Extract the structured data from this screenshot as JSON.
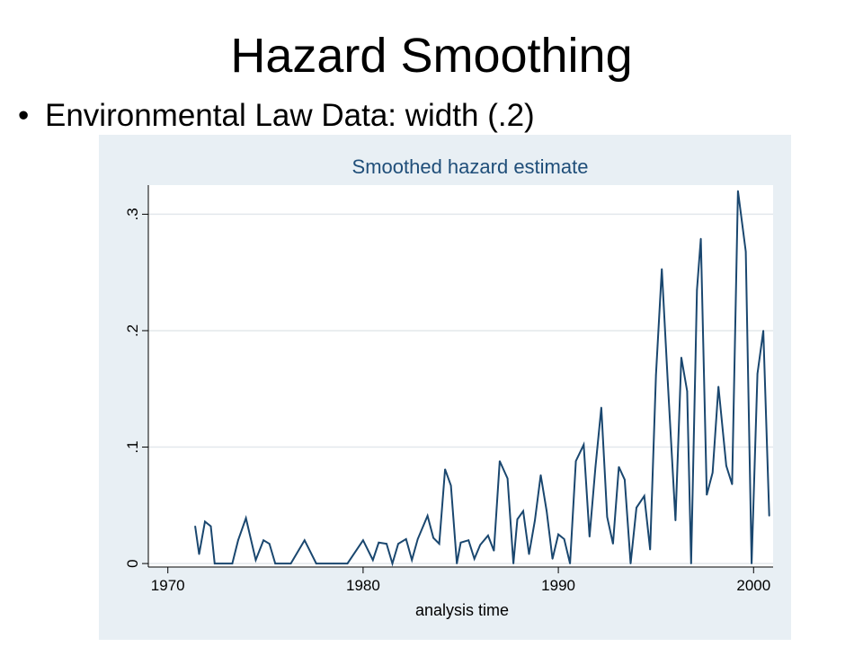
{
  "slide": {
    "title": "Hazard Smoothing",
    "bullet": "Environmental Law Data:  width (.2)"
  },
  "colors": {
    "panel_bg": "#e8eff4",
    "plot_bg": "#ffffff",
    "line": "#1a476f",
    "grid": "#e3e8ec",
    "title": "#1f4e79"
  },
  "chart_data": {
    "type": "line",
    "title": "Smoothed hazard estimate",
    "xlabel": "analysis time",
    "ylabel": "",
    "xlim": [
      1969,
      2001
    ],
    "ylim": [
      -0.003,
      0.325
    ],
    "xticks": [
      1970,
      1980,
      1990,
      2000
    ],
    "xtick_labels": [
      "1970",
      "1980",
      "1990",
      "2000"
    ],
    "yticks": [
      0,
      0.1,
      0.2,
      0.3
    ],
    "ytick_labels": [
      "0",
      ".1",
      ".2",
      ".3"
    ],
    "grid": true,
    "series": [
      {
        "x": [
          1971.4,
          1971.6,
          1971.9,
          1972.2,
          1972.4,
          1972.8,
          1973.3,
          1973.6,
          1974.0,
          1974.5,
          1974.9,
          1975.2,
          1975.5,
          1976.3,
          1977.0,
          1977.6,
          1978.5,
          1979.2,
          1980.0,
          1980.5,
          1980.8,
          1981.2,
          1981.5,
          1981.8,
          1982.2,
          1982.5,
          1982.8,
          1983.3,
          1983.6,
          1983.9,
          1984.2,
          1984.5,
          1984.8,
          1985.0,
          1985.4,
          1985.7,
          1986.0,
          1986.4,
          1986.7,
          1987.0,
          1987.4,
          1987.7,
          1987.9,
          1988.2,
          1988.5,
          1988.8,
          1989.1,
          1989.4,
          1989.7,
          1990.0,
          1990.3,
          1990.6,
          1990.9,
          1991.3,
          1991.6,
          1991.9,
          1992.2,
          1992.5,
          1992.8,
          1993.1,
          1993.4,
          1993.7,
          1994.0,
          1994.4,
          1994.7,
          1995.0,
          1995.3,
          1995.6,
          1996.0,
          1996.3,
          1996.6,
          1996.8,
          1997.1,
          1997.3,
          1997.6,
          1997.9,
          1998.2,
          1998.6,
          1998.9,
          1999.2,
          1999.6,
          1999.9,
          2000.2,
          2000.5,
          2000.8
        ],
        "y": [
          0.032,
          0.008,
          0.036,
          0.032,
          0.0,
          0.0,
          0.0,
          0.02,
          0.039,
          0.003,
          0.02,
          0.017,
          0.0,
          0.0,
          0.02,
          0.0,
          0.0,
          0.0,
          0.02,
          0.003,
          0.018,
          0.017,
          0.0,
          0.017,
          0.021,
          0.003,
          0.021,
          0.041,
          0.022,
          0.017,
          0.081,
          0.067,
          0.0,
          0.018,
          0.02,
          0.004,
          0.016,
          0.024,
          0.011,
          0.088,
          0.073,
          0.0,
          0.038,
          0.045,
          0.008,
          0.037,
          0.076,
          0.045,
          0.004,
          0.025,
          0.021,
          0.0,
          0.088,
          0.102,
          0.023,
          0.083,
          0.134,
          0.04,
          0.017,
          0.083,
          0.072,
          0.0,
          0.048,
          0.058,
          0.012,
          0.162,
          0.253,
          0.158,
          0.037,
          0.177,
          0.148,
          0.0,
          0.235,
          0.279,
          0.059,
          0.078,
          0.152,
          0.084,
          0.068,
          0.32,
          0.268,
          0.0,
          0.163,
          0.2,
          0.041
        ]
      }
    ]
  }
}
